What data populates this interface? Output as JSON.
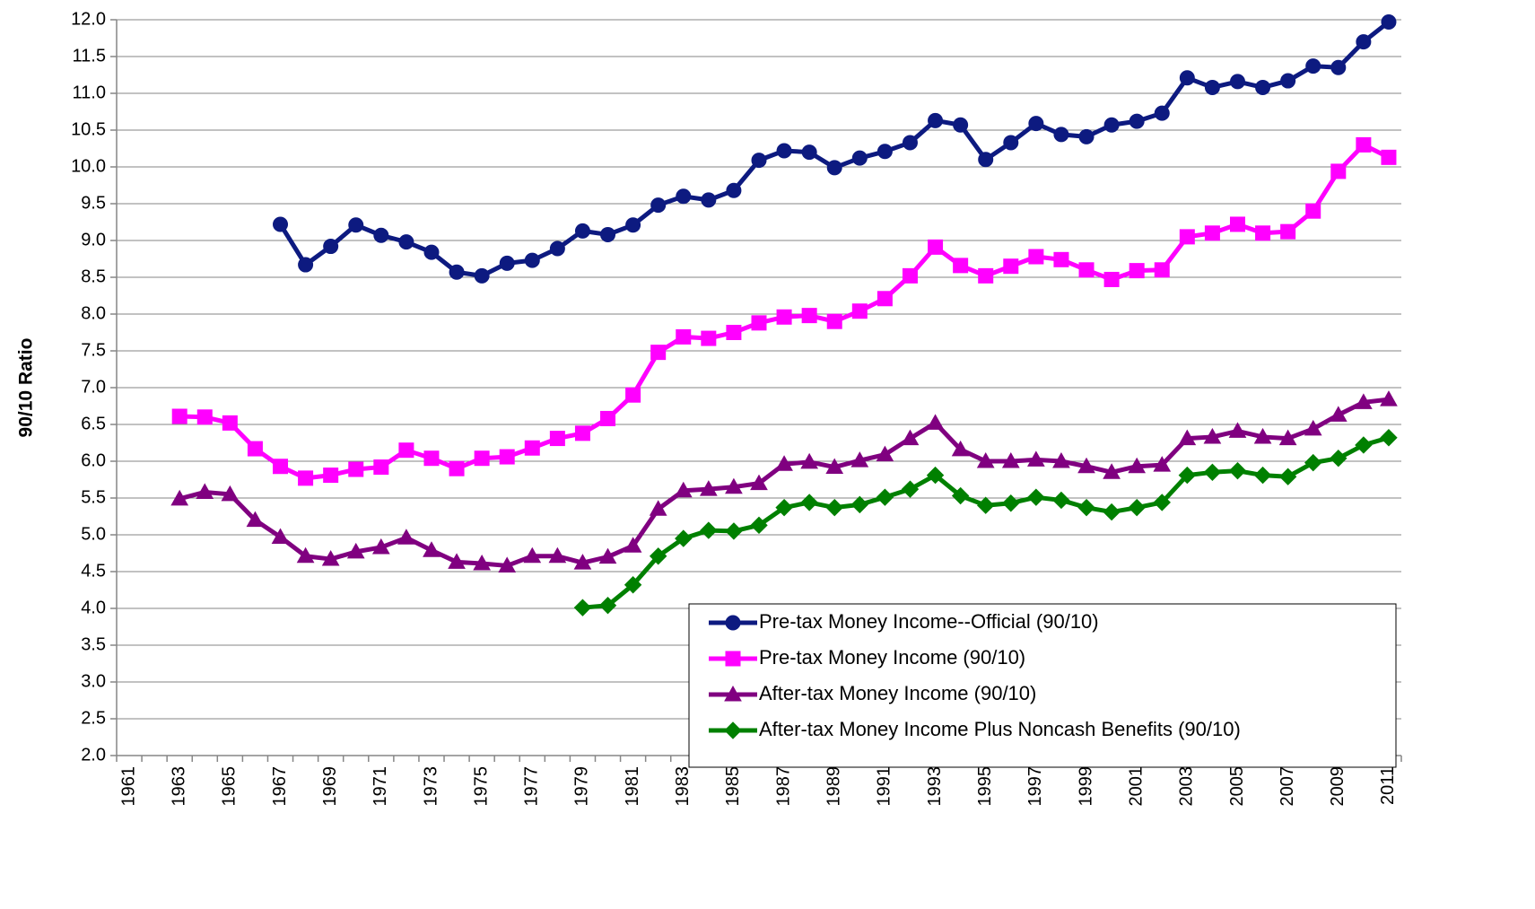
{
  "chart_data": {
    "type": "line",
    "y_label": "90/10 Ratio",
    "categories": [
      "1961",
      null,
      "1963",
      null,
      "1965",
      null,
      "1967",
      null,
      "1969",
      null,
      "1971",
      null,
      "1973",
      null,
      "1975",
      null,
      "1977",
      null,
      "1979",
      null,
      "1981",
      null,
      "1983",
      null,
      "1985",
      null,
      "1987",
      null,
      "1989",
      null,
      "1991",
      null,
      "1993",
      null,
      "1995",
      null,
      "1997",
      null,
      "1999",
      null,
      "2001",
      null,
      "2003",
      null,
      "2005",
      null,
      "2007",
      null,
      "2009",
      null,
      "2011"
    ],
    "ylim": [
      2,
      12
    ],
    "yticks": [
      {
        "value": 2,
        "label": "2.0"
      },
      2.5,
      {
        "value": 3,
        "label": "3.0"
      },
      3.5,
      {
        "value": 4,
        "label": "4.0"
      },
      4.5,
      {
        "value": 5,
        "label": "5.0"
      },
      5.5,
      {
        "value": 6,
        "label": "6.0"
      },
      6.5,
      {
        "value": 7,
        "label": "7.0"
      },
      7.5,
      {
        "value": 8,
        "label": "8.0"
      },
      8.5,
      {
        "value": 9,
        "label": "9.0"
      },
      9.5,
      {
        "value": 10,
        "label": "10.0"
      },
      10.5,
      {
        "value": 11,
        "label": "11.0"
      },
      11.5,
      {
        "value": 12,
        "label": "12.0"
      }
    ],
    "grid": true,
    "legend": "lower right",
    "series": [
      {
        "name": "Pre-tax Money Income--Official (90/10)",
        "color": "#0d1a80",
        "marker": "circle",
        "values": [
          null,
          null,
          null,
          null,
          null,
          null,
          9.22,
          8.67,
          8.92,
          9.21,
          9.07,
          8.98,
          8.84,
          8.57,
          8.52,
          8.69,
          8.73,
          8.89,
          9.13,
          9.08,
          9.21,
          9.48,
          9.6,
          9.55,
          9.68,
          10.09,
          10.22,
          10.2,
          9.99,
          10.12,
          10.21,
          10.33,
          10.63,
          10.57,
          10.1,
          10.33,
          10.59,
          10.44,
          10.41,
          10.57,
          10.62,
          10.73,
          11.21,
          11.08,
          11.16,
          11.08,
          11.17,
          11.37,
          11.35,
          11.7,
          11.97
        ]
      },
      {
        "name": "Pre-tax Money Income (90/10)",
        "color": "#ff00ff",
        "marker": "square",
        "values": [
          null,
          null,
          6.61,
          6.6,
          6.52,
          6.17,
          5.93,
          5.77,
          5.81,
          5.89,
          5.92,
          6.15,
          6.04,
          5.9,
          6.04,
          6.06,
          6.18,
          6.31,
          6.38,
          6.58,
          6.9,
          7.48,
          7.69,
          7.67,
          7.75,
          7.88,
          7.96,
          7.98,
          7.9,
          8.04,
          8.21,
          8.52,
          8.91,
          8.66,
          8.52,
          8.65,
          8.78,
          8.74,
          8.6,
          8.47,
          8.59,
          8.6,
          9.05,
          9.1,
          9.22,
          9.1,
          9.12,
          9.4,
          9.94,
          10.3,
          10.13
        ]
      },
      {
        "name": "After-tax Money Income (90/10)",
        "color": "#800080",
        "marker": "triangle",
        "values": [
          null,
          null,
          5.49,
          5.58,
          5.55,
          5.2,
          4.97,
          4.71,
          4.67,
          4.77,
          4.83,
          4.96,
          4.79,
          4.63,
          4.61,
          4.58,
          4.71,
          4.71,
          4.62,
          4.7,
          4.85,
          5.35,
          5.6,
          5.62,
          5.65,
          5.7,
          5.96,
          5.99,
          5.92,
          6.01,
          6.09,
          6.31,
          6.52,
          6.16,
          6.0,
          6.0,
          6.02,
          6.0,
          5.93,
          5.85,
          5.93,
          5.95,
          6.31,
          6.33,
          6.41,
          6.33,
          6.31,
          6.44,
          6.63,
          6.8,
          6.84
        ]
      },
      {
        "name": "After-tax Money Income Plus Noncash Benefits (90/10)",
        "color": "#008000",
        "marker": "diamond",
        "values": [
          null,
          null,
          null,
          null,
          null,
          null,
          null,
          null,
          null,
          null,
          null,
          null,
          null,
          null,
          null,
          null,
          null,
          null,
          4.01,
          4.04,
          4.32,
          4.71,
          4.95,
          5.06,
          5.05,
          5.13,
          5.37,
          5.44,
          5.37,
          5.41,
          5.51,
          5.62,
          5.81,
          5.53,
          5.4,
          5.43,
          5.51,
          5.47,
          5.37,
          5.31,
          5.37,
          5.44,
          5.81,
          5.85,
          5.87,
          5.81,
          5.79,
          5.98,
          6.04,
          6.22,
          6.32
        ]
      }
    ]
  }
}
